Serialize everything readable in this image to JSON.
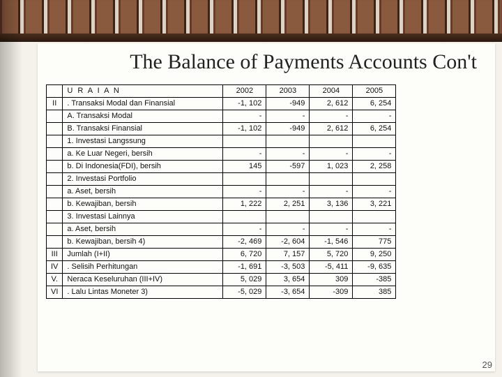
{
  "slide": {
    "title": "The Balance of Payments Accounts Con't",
    "number": "29"
  },
  "table": {
    "header": {
      "idx": "",
      "desc": "U R A I A N",
      "years": [
        "2002",
        "2003",
        "2004",
        "2005"
      ]
    },
    "rows": [
      {
        "idx": "II",
        "desc": ". Transaksi Modal dan Finansial",
        "v": [
          "-1, 102",
          "-949",
          "2, 612",
          "6, 254"
        ]
      },
      {
        "idx": "",
        "desc": "A. Transaksi Modal",
        "v": [
          "-",
          "-",
          "-",
          "-"
        ]
      },
      {
        "idx": "",
        "desc": "B. Transaksi Finansial",
        "v": [
          "-1, 102",
          "-949",
          "2, 612",
          "6, 254"
        ]
      },
      {
        "idx": "",
        "desc": "1. Investasi Langssung",
        "v": [
          "",
          "",
          "",
          ""
        ]
      },
      {
        "idx": "",
        "desc": "a. Ke Luar Negeri, bersih",
        "v": [
          "-",
          "-",
          "-",
          "-"
        ]
      },
      {
        "idx": "",
        "desc": "b. Di Indonesia(FDI), bersih",
        "v": [
          "145",
          "-597",
          "1, 023",
          "2, 258"
        ]
      },
      {
        "idx": "",
        "desc": "2. Investasi Portfolio",
        "v": [
          "",
          "",
          "",
          ""
        ]
      },
      {
        "idx": "",
        "desc": "a. Aset, bersih",
        "v": [
          "-",
          "-",
          "-",
          "-"
        ]
      },
      {
        "idx": "",
        "desc": "b. Kewajiban, bersih",
        "v": [
          "1, 222",
          "2, 251",
          "3, 136",
          "3, 221"
        ]
      },
      {
        "idx": "",
        "desc": "3. Investasi Lainnya",
        "v": [
          "",
          "",
          "",
          ""
        ]
      },
      {
        "idx": "",
        "desc": "a. Aset, bersih",
        "v": [
          "-",
          "-",
          "-",
          "-"
        ]
      },
      {
        "idx": "",
        "desc": "b. Kewajiban, bersih 4)",
        "v": [
          "-2, 469",
          "-2, 604",
          "-1, 546",
          "775"
        ]
      },
      {
        "idx": "III",
        "desc": "Jumlah (I+II)",
        "v": [
          "6, 720",
          "7, 157",
          "5, 720",
          "9, 250"
        ]
      },
      {
        "idx": "IV",
        "desc": ". Selisih Perhitungan",
        "v": [
          "-1, 691",
          "-3, 503",
          "-5, 411",
          "-9, 635"
        ]
      },
      {
        "idx": "V.",
        "desc": "Neraca Keseluruhan (III+IV)",
        "v": [
          "5, 029",
          "3, 654",
          "309",
          "-385"
        ]
      },
      {
        "idx": "VI",
        "desc": ". Lalu Lintas Moneter 3)",
        "v": [
          "-5, 029",
          "-3, 654",
          "-309",
          "385"
        ]
      }
    ]
  }
}
